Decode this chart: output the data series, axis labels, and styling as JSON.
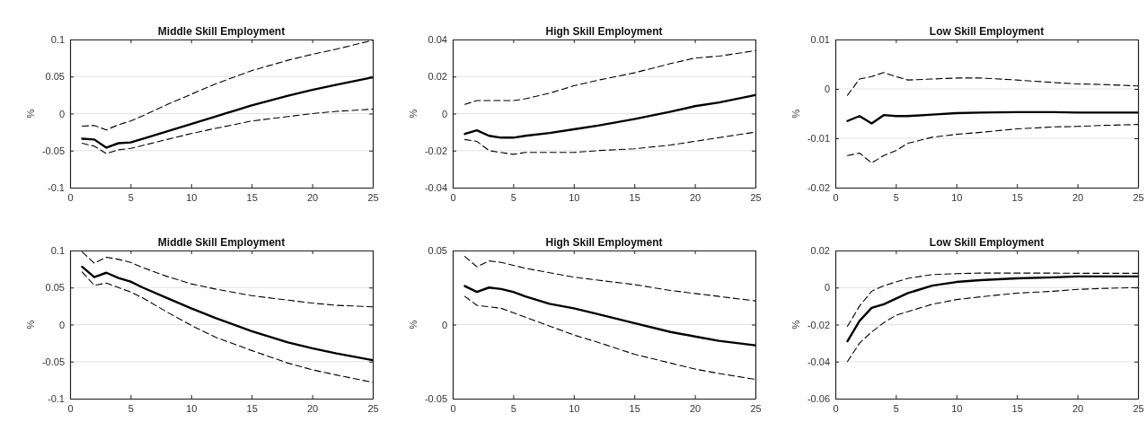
{
  "chart_data": [
    {
      "type": "line",
      "title": "Middle Skill Employment",
      "ylabel": "%",
      "x": [
        1,
        2,
        3,
        4,
        5,
        6,
        8,
        10,
        12,
        15,
        18,
        20,
        22,
        25
      ],
      "xlim": [
        0,
        25
      ],
      "xticks": [
        0,
        5,
        10,
        15,
        20,
        25
      ],
      "ylim": [
        -0.1,
        0.1
      ],
      "yticks": [
        -0.1,
        -0.05,
        0,
        0.05,
        0.1
      ],
      "grid": "y",
      "series": [
        {
          "color": "#000000",
          "line_style": "solid",
          "values": [
            -0.034,
            -0.035,
            -0.046,
            -0.04,
            -0.039,
            -0.034,
            -0.024,
            -0.014,
            -0.004,
            0.011,
            0.024,
            0.032,
            0.039,
            0.049
          ]
        },
        {
          "color": "#000000",
          "line_style": "dashed",
          "values": [
            -0.017,
            -0.016,
            -0.022,
            -0.015,
            -0.01,
            -0.003,
            0.012,
            0.026,
            0.04,
            0.058,
            0.072,
            0.08,
            0.087,
            0.099
          ]
        },
        {
          "color": "#000000",
          "line_style": "dashed",
          "values": [
            -0.04,
            -0.044,
            -0.054,
            -0.049,
            -0.047,
            -0.043,
            -0.035,
            -0.027,
            -0.02,
            -0.01,
            -0.004,
            0.0,
            0.003,
            0.006
          ]
        }
      ]
    },
    {
      "type": "line",
      "title": "High Skill Employment",
      "ylabel": "%",
      "x": [
        1,
        2,
        3,
        4,
        5,
        6,
        8,
        10,
        12,
        15,
        18,
        20,
        22,
        25
      ],
      "xlim": [
        0,
        25
      ],
      "xticks": [
        0,
        5,
        10,
        15,
        20,
        25
      ],
      "ylim": [
        -0.04,
        0.04
      ],
      "yticks": [
        -0.04,
        -0.02,
        0,
        0.02,
        0.04
      ],
      "grid": "y",
      "series": [
        {
          "color": "#000000",
          "line_style": "solid",
          "values": [
            -0.011,
            -0.009,
            -0.012,
            -0.013,
            -0.013,
            -0.012,
            -0.0105,
            -0.0085,
            -0.0065,
            -0.003,
            0.001,
            0.004,
            0.006,
            0.01
          ]
        },
        {
          "color": "#000000",
          "line_style": "dashed",
          "values": [
            0.005,
            0.007,
            0.007,
            0.007,
            0.007,
            0.008,
            0.011,
            0.015,
            0.018,
            0.022,
            0.027,
            0.03,
            0.031,
            0.034
          ]
        },
        {
          "color": "#000000",
          "line_style": "dashed",
          "values": [
            -0.014,
            -0.015,
            -0.02,
            -0.021,
            -0.022,
            -0.021,
            -0.021,
            -0.021,
            -0.02,
            -0.019,
            -0.017,
            -0.015,
            -0.013,
            -0.01
          ]
        }
      ]
    },
    {
      "type": "line",
      "title": "Low Skill Employment",
      "ylabel": "%",
      "x": [
        1,
        2,
        3,
        4,
        5,
        6,
        8,
        10,
        12,
        15,
        18,
        20,
        22,
        25
      ],
      "xlim": [
        0,
        25
      ],
      "xticks": [
        0,
        5,
        10,
        15,
        20,
        25
      ],
      "ylim": [
        -0.02,
        0.01
      ],
      "yticks": [
        -0.02,
        -0.01,
        0,
        0.01
      ],
      "grid": "y",
      "series": [
        {
          "color": "#000000",
          "line_style": "solid",
          "values": [
            -0.0065,
            -0.0055,
            -0.007,
            -0.0053,
            -0.0055,
            -0.0055,
            -0.0052,
            -0.0049,
            -0.0048,
            -0.0047,
            -0.0047,
            -0.0048,
            -0.0048,
            -0.0048
          ]
        },
        {
          "color": "#000000",
          "line_style": "dashed",
          "values": [
            -0.0013,
            0.002,
            0.0025,
            0.0033,
            0.0025,
            0.0018,
            0.002,
            0.0022,
            0.0022,
            0.0018,
            0.0013,
            0.001,
            0.0009,
            0.0006
          ]
        },
        {
          "color": "#000000",
          "line_style": "dashed",
          "values": [
            -0.0135,
            -0.013,
            -0.015,
            -0.0135,
            -0.0125,
            -0.011,
            -0.0098,
            -0.0092,
            -0.0088,
            -0.0081,
            -0.0077,
            -0.0076,
            -0.0074,
            -0.0072
          ]
        }
      ]
    },
    {
      "type": "line",
      "title": "Middle Skill Employment",
      "ylabel": "%",
      "x": [
        1,
        2,
        3,
        4,
        5,
        6,
        8,
        10,
        12,
        15,
        18,
        20,
        22,
        25
      ],
      "xlim": [
        0,
        25
      ],
      "xticks": [
        0,
        5,
        10,
        15,
        20,
        25
      ],
      "ylim": [
        -0.1,
        0.1
      ],
      "yticks": [
        -0.1,
        -0.05,
        0,
        0.05,
        0.1
      ],
      "grid": "y",
      "series": [
        {
          "color": "#000000",
          "line_style": "solid",
          "values": [
            0.078,
            0.064,
            0.07,
            0.063,
            0.058,
            0.05,
            0.036,
            0.022,
            0.009,
            -0.009,
            -0.024,
            -0.032,
            -0.039,
            -0.048
          ]
        },
        {
          "color": "#000000",
          "line_style": "dashed",
          "values": [
            0.098,
            0.083,
            0.091,
            0.088,
            0.084,
            0.077,
            0.065,
            0.055,
            0.048,
            0.039,
            0.033,
            0.029,
            0.026,
            0.024
          ]
        },
        {
          "color": "#000000",
          "line_style": "dashed",
          "values": [
            0.071,
            0.053,
            0.056,
            0.05,
            0.044,
            0.036,
            0.017,
            -0.001,
            -0.017,
            -0.035,
            -0.052,
            -0.061,
            -0.068,
            -0.078
          ]
        }
      ]
    },
    {
      "type": "line",
      "title": "High Skill Employment",
      "ylabel": "%",
      "x": [
        1,
        2,
        3,
        4,
        5,
        6,
        8,
        10,
        12,
        15,
        18,
        20,
        22,
        25
      ],
      "xlim": [
        0,
        25
      ],
      "xticks": [
        0,
        5,
        10,
        15,
        20,
        25
      ],
      "ylim": [
        -0.05,
        0.05
      ],
      "yticks": [
        -0.05,
        0,
        0.05
      ],
      "grid": "y",
      "series": [
        {
          "color": "#000000",
          "line_style": "solid",
          "values": [
            0.026,
            0.022,
            0.025,
            0.024,
            0.022,
            0.019,
            0.014,
            0.011,
            0.007,
            0.001,
            -0.005,
            -0.008,
            -0.011,
            -0.014
          ]
        },
        {
          "color": "#000000",
          "line_style": "dashed",
          "values": [
            0.046,
            0.039,
            0.043,
            0.042,
            0.04,
            0.038,
            0.035,
            0.032,
            0.03,
            0.027,
            0.023,
            0.021,
            0.019,
            0.016
          ]
        },
        {
          "color": "#000000",
          "line_style": "dashed",
          "values": [
            0.019,
            0.013,
            0.012,
            0.011,
            0.008,
            0.005,
            -0.001,
            -0.007,
            -0.012,
            -0.02,
            -0.026,
            -0.03,
            -0.033,
            -0.037
          ]
        }
      ]
    },
    {
      "type": "line",
      "title": "Low Skill Employment",
      "ylabel": "%",
      "x": [
        1,
        2,
        3,
        4,
        5,
        6,
        8,
        10,
        12,
        15,
        18,
        20,
        22,
        25
      ],
      "xlim": [
        0,
        25
      ],
      "xticks": [
        0,
        5,
        10,
        15,
        20,
        25
      ],
      "ylim": [
        -0.06,
        0.02
      ],
      "yticks": [
        -0.06,
        -0.04,
        -0.02,
        0,
        0.02
      ],
      "grid": "y",
      "series": [
        {
          "color": "#000000",
          "line_style": "solid",
          "values": [
            -0.029,
            -0.018,
            -0.011,
            -0.009,
            -0.006,
            -0.003,
            0.001,
            0.003,
            0.004,
            0.005,
            0.0055,
            0.006,
            0.006,
            0.006
          ]
        },
        {
          "color": "#000000",
          "line_style": "dashed",
          "values": [
            -0.021,
            -0.01,
            -0.002,
            0.001,
            0.003,
            0.005,
            0.007,
            0.0075,
            0.0078,
            0.0078,
            0.0078,
            0.0077,
            0.0077,
            0.0077
          ]
        },
        {
          "color": "#000000",
          "line_style": "dashed",
          "values": [
            -0.04,
            -0.03,
            -0.024,
            -0.019,
            -0.015,
            -0.013,
            -0.009,
            -0.0065,
            -0.005,
            -0.003,
            -0.002,
            -0.001,
            -0.0005,
            0.0
          ]
        }
      ]
    }
  ]
}
